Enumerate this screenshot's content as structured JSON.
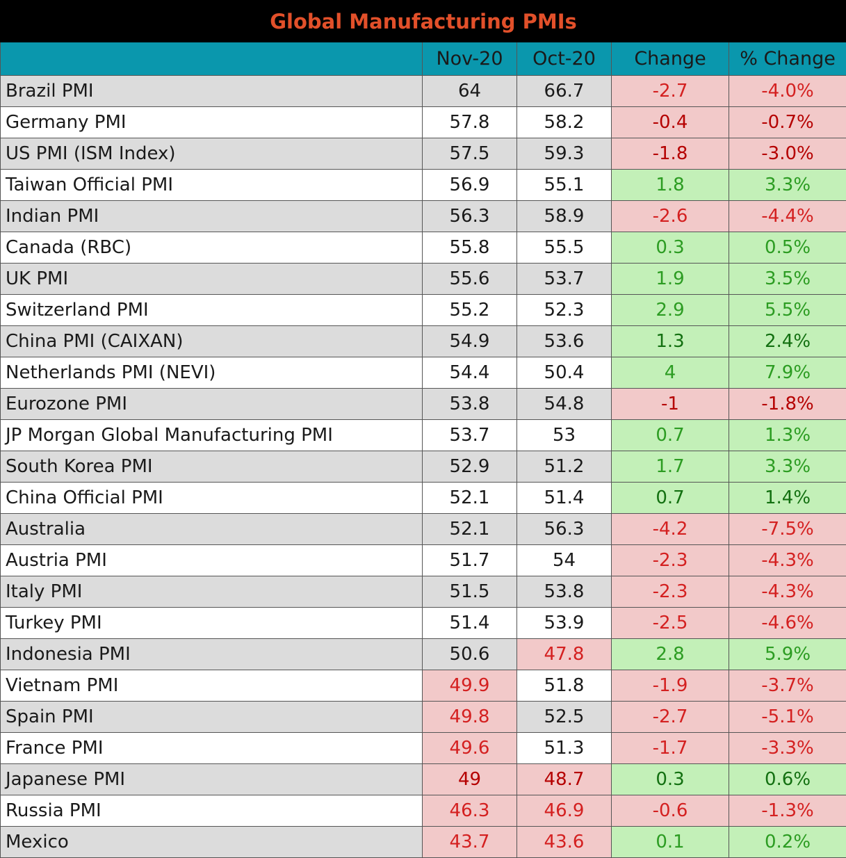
{
  "chart_data": {
    "type": "table",
    "title": "Global Manufacturing PMIs",
    "columns": [
      "",
      "Nov-20",
      "Oct-20",
      "Change",
      "% Change"
    ],
    "colors": {
      "header_bg": "#0a97ad",
      "title_bg": "#000000",
      "title_text": "#e2502a",
      "negative_bg": "#f2c9c9",
      "negative_text": "#d42020",
      "positive_bg": "#c3f0b8",
      "positive_text": "#2c9c22",
      "row_shade": "#dcdcdc"
    },
    "rows": [
      {
        "label": "Brazil PMI",
        "nov": "64",
        "oct": "66.7",
        "change": "-2.7",
        "pct": "-4.0%",
        "bold": false
      },
      {
        "label": "Germany PMI",
        "nov": "57.8",
        "oct": "58.2",
        "change": "-0.4",
        "pct": "-0.7%",
        "bold": true
      },
      {
        "label": "US PMI (ISM Index)",
        "nov": "57.5",
        "oct": "59.3",
        "change": "-1.8",
        "pct": "-3.0%",
        "bold": true
      },
      {
        "label": "Taiwan Official PMI",
        "nov": "56.9",
        "oct": "55.1",
        "change": "1.8",
        "pct": "3.3%",
        "bold": false
      },
      {
        "label": "Indian PMI",
        "nov": "56.3",
        "oct": "58.9",
        "change": "-2.6",
        "pct": "-4.4%",
        "bold": false
      },
      {
        "label": "Canada (RBC)",
        "nov": "55.8",
        "oct": "55.5",
        "change": "0.3",
        "pct": "0.5%",
        "bold": false
      },
      {
        "label": "UK PMI",
        "nov": "55.6",
        "oct": "53.7",
        "change": "1.9",
        "pct": "3.5%",
        "bold": false
      },
      {
        "label": "Switzerland PMI",
        "nov": "55.2",
        "oct": "52.3",
        "change": "2.9",
        "pct": "5.5%",
        "bold": false
      },
      {
        "label": "China PMI (CAIXAN)",
        "nov": "54.9",
        "oct": "53.6",
        "change": "1.3",
        "pct": "2.4%",
        "bold": true
      },
      {
        "label": "Netherlands PMI (NEVI)",
        "nov": "54.4",
        "oct": "50.4",
        "change": "4",
        "pct": "7.9%",
        "bold": false
      },
      {
        "label": "Eurozone PMI",
        "nov": "53.8",
        "oct": "54.8",
        "change": "-1",
        "pct": "-1.8%",
        "bold": true
      },
      {
        "label": "JP Morgan Global Manufacturing PMI",
        "nov": "53.7",
        "oct": "53",
        "change": "0.7",
        "pct": "1.3%",
        "bold": false
      },
      {
        "label": "South Korea PMI",
        "nov": "52.9",
        "oct": "51.2",
        "change": "1.7",
        "pct": "3.3%",
        "bold": false
      },
      {
        "label": "China Official PMI",
        "nov": "52.1",
        "oct": "51.4",
        "change": "0.7",
        "pct": "1.4%",
        "bold": true
      },
      {
        "label": "Australia",
        "nov": "52.1",
        "oct": "56.3",
        "change": "-4.2",
        "pct": "-7.5%",
        "bold": false
      },
      {
        "label": "Austria PMI",
        "nov": "51.7",
        "oct": "54",
        "change": "-2.3",
        "pct": "-4.3%",
        "bold": false
      },
      {
        "label": "Italy PMI",
        "nov": "51.5",
        "oct": "53.8",
        "change": "-2.3",
        "pct": "-4.3%",
        "bold": false
      },
      {
        "label": "Turkey PMI",
        "nov": "51.4",
        "oct": "53.9",
        "change": "-2.5",
        "pct": "-4.6%",
        "bold": false
      },
      {
        "label": "Indonesia PMI",
        "nov": "50.6",
        "oct": "47.8",
        "change": "2.8",
        "pct": "5.9%",
        "bold": false
      },
      {
        "label": "Vietnam PMI",
        "nov": "49.9",
        "oct": "51.8",
        "change": "-1.9",
        "pct": "-3.7%",
        "bold": false
      },
      {
        "label": "Spain PMI",
        "nov": "49.8",
        "oct": "52.5",
        "change": "-2.7",
        "pct": "-5.1%",
        "bold": false
      },
      {
        "label": "France PMI",
        "nov": "49.6",
        "oct": "51.3",
        "change": "-1.7",
        "pct": "-3.3%",
        "bold": false
      },
      {
        "label": "Japanese PMI",
        "nov": "49",
        "oct": "48.7",
        "change": "0.3",
        "pct": "0.6%",
        "bold": true
      },
      {
        "label": "Russia PMI",
        "nov": "46.3",
        "oct": "46.9",
        "change": "-0.6",
        "pct": "-1.3%",
        "bold": false
      },
      {
        "label": "Mexico",
        "nov": "43.7",
        "oct": "43.6",
        "change": "0.1",
        "pct": "0.2%",
        "bold": false
      }
    ]
  }
}
